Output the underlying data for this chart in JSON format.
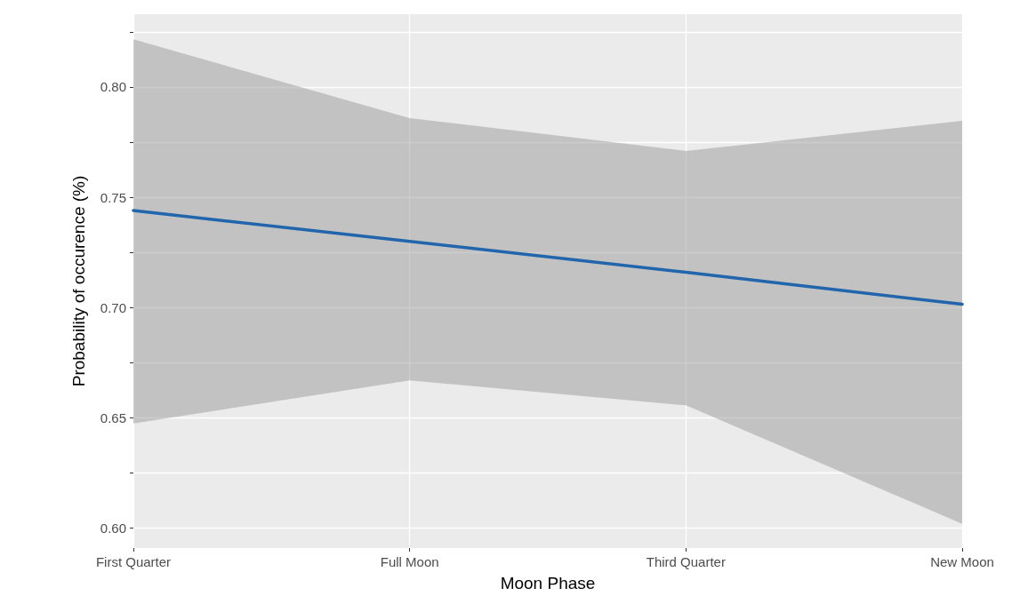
{
  "chart_data": {
    "type": "line",
    "xlabel": "Moon Phase",
    "ylabel": "Probability of occurence (%)",
    "categories": [
      "First Quarter",
      "Full Moon",
      "Third Quarter",
      "New Moon"
    ],
    "ylim": [
      0.591,
      0.833
    ],
    "yticks": [
      {
        "value": 0.6,
        "label": "0.60"
      },
      {
        "value": 0.625,
        "label": null
      },
      {
        "value": 0.65,
        "label": "0.65"
      },
      {
        "value": 0.675,
        "label": null
      },
      {
        "value": 0.7,
        "label": "0.70"
      },
      {
        "value": 0.725,
        "label": null
      },
      {
        "value": 0.75,
        "label": "0.75"
      },
      {
        "value": 0.775,
        "label": null
      },
      {
        "value": 0.8,
        "label": "0.80"
      },
      {
        "value": 0.825,
        "label": null
      }
    ],
    "grid": true,
    "marker": "none",
    "series": [
      {
        "color": "#2166ac",
        "values": [
          0.744,
          0.73,
          0.716,
          0.7015
        ],
        "lower": [
          0.6475,
          0.667,
          0.6557,
          0.602
        ],
        "upper": [
          0.8216,
          0.7859,
          0.771,
          0.7847
        ]
      }
    ]
  }
}
